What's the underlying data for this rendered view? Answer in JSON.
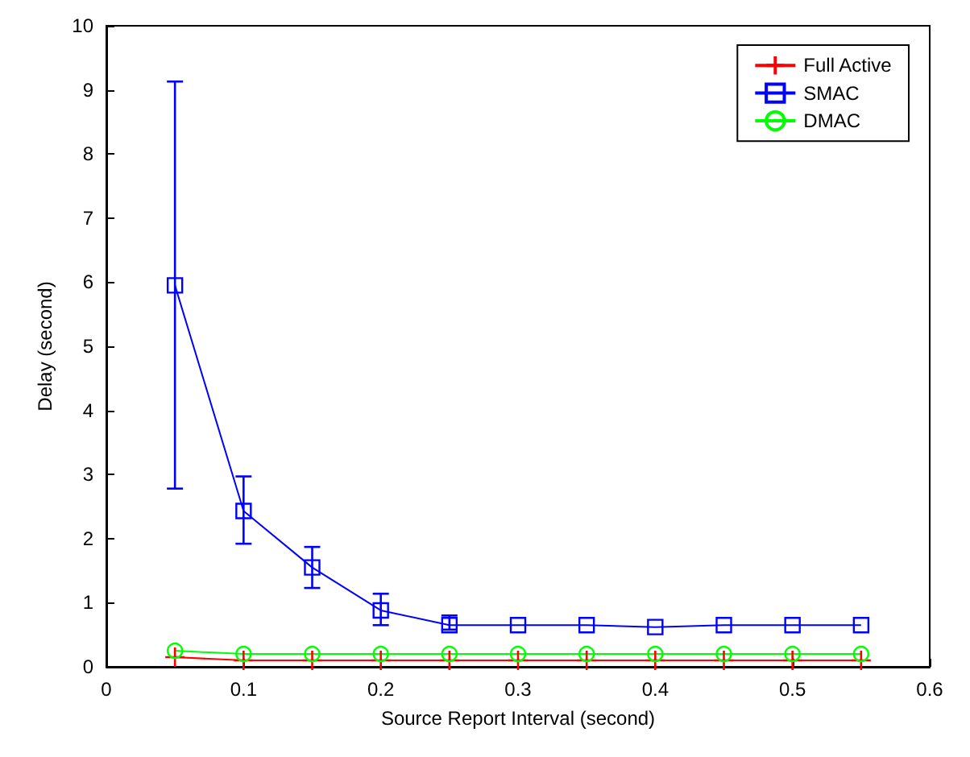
{
  "chart_data": {
    "type": "line",
    "xlabel": "Source Report Interval (second)",
    "ylabel": "Delay (second)",
    "x": [
      0.05,
      0.1,
      0.15,
      0.2,
      0.25,
      0.3,
      0.35,
      0.4,
      0.45,
      0.5,
      0.55
    ],
    "series": [
      {
        "name": "Full Active",
        "color": "#ff0000",
        "marker": "cross",
        "values": [
          0.15,
          0.1,
          0.1,
          0.1,
          0.1,
          0.1,
          0.1,
          0.1,
          0.1,
          0.1,
          0.1
        ]
      },
      {
        "name": "SMAC",
        "color": "#0000ff",
        "marker": "square",
        "values": [
          5.95,
          2.43,
          1.55,
          0.88,
          0.65,
          0.65,
          0.65,
          0.62,
          0.65,
          0.65,
          0.65
        ],
        "errors": [
          [
            2.78,
            9.13
          ],
          [
            1.92,
            2.97
          ],
          [
            1.23,
            1.87
          ],
          [
            0.65,
            1.14
          ],
          [
            0.58,
            0.8
          ],
          null,
          null,
          null,
          null,
          null,
          null
        ]
      },
      {
        "name": "DMAC",
        "color": "#00ff00",
        "marker": "circle",
        "values": [
          0.25,
          0.2,
          0.2,
          0.2,
          0.2,
          0.2,
          0.2,
          0.2,
          0.2,
          0.2,
          0.2
        ]
      }
    ],
    "xlim": [
      0,
      0.6
    ],
    "xticks": [
      0,
      0.1,
      0.2,
      0.3,
      0.4,
      0.5,
      0.6
    ],
    "ylim": [
      0,
      10
    ],
    "yticks": [
      0,
      1,
      2,
      3,
      4,
      5,
      6,
      7,
      8,
      9,
      10
    ],
    "grid": false,
    "legend": "top right",
    "line_style": "solid"
  }
}
